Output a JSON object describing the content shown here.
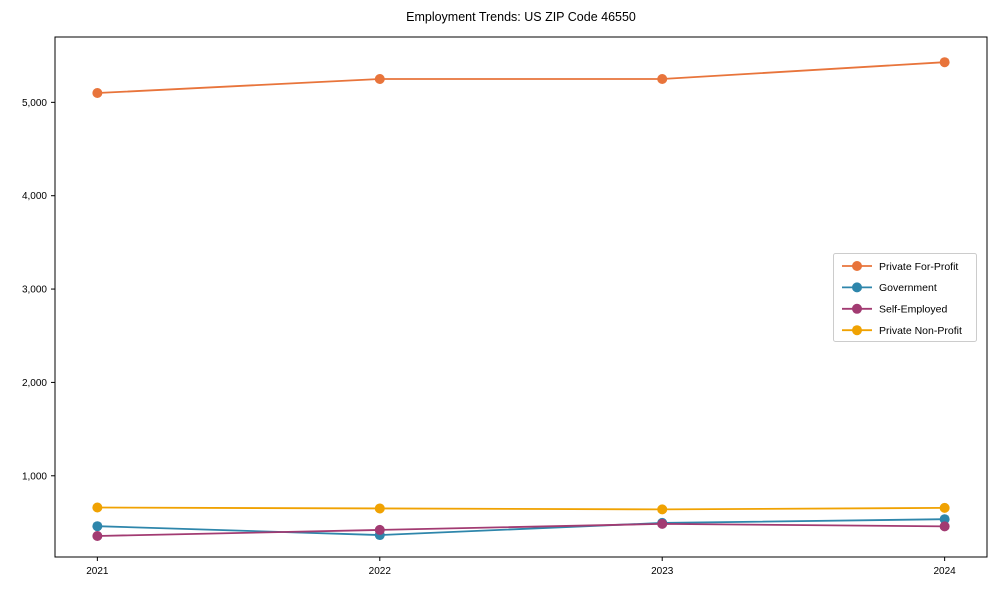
{
  "chart_data": {
    "type": "line",
    "title": "Employment Trends: US ZIP Code 46550",
    "xlabel": "",
    "ylabel": "",
    "x": [
      2021,
      2022,
      2023,
      2024
    ],
    "x_ticks": [
      {
        "value": 2021,
        "label": "2021"
      },
      {
        "value": 2022,
        "label": "2022"
      },
      {
        "value": 2023,
        "label": "2023"
      },
      {
        "value": 2024,
        "label": "2024"
      }
    ],
    "y_ticks": [
      {
        "value": 1000,
        "label": "1,000"
      },
      {
        "value": 2000,
        "label": "2,000"
      },
      {
        "value": 3000,
        "label": "3,000"
      },
      {
        "value": 4000,
        "label": "4,000"
      },
      {
        "value": 5000,
        "label": "5,000"
      }
    ],
    "series": [
      {
        "name": "Private For-Profit",
        "color": "#e8743b",
        "values": [
          5100,
          5250,
          5250,
          5430
        ]
      },
      {
        "name": "Government",
        "color": "#2e86ab",
        "values": [
          460,
          365,
          495,
          535
        ]
      },
      {
        "name": "Self-Employed",
        "color": "#a23b72",
        "values": [
          355,
          420,
          485,
          458
        ]
      },
      {
        "name": "Private Non-Profit",
        "color": "#f0a202",
        "values": [
          660,
          650,
          640,
          656
        ]
      }
    ],
    "xlim": [
      2020.85,
      2024.15
    ],
    "ylim": [
      130,
      5700
    ],
    "grid": false,
    "legend_position": "center-right",
    "marker": "circle",
    "marker_radius": 5,
    "line_width": 1.8,
    "axis_color": "#000000",
    "background_color": "#ffffff",
    "legend_border_color": "#cccccc"
  }
}
